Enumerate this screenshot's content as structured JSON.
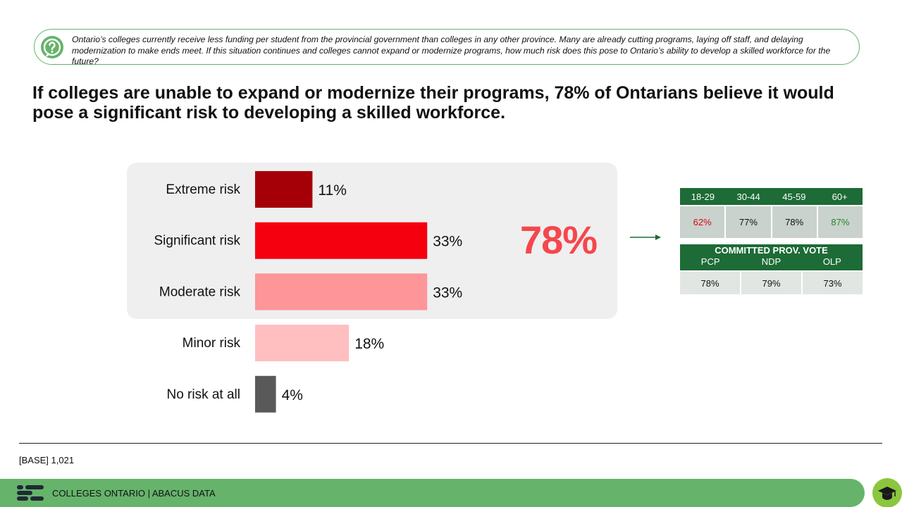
{
  "question": {
    "icon": "question-icon",
    "text": "Ontario’s colleges currently receive less funding per student from the provincial government than colleges in any other province. Many are already cutting programs, laying off staff, and delaying modernization to make ends meet. If this situation continues and colleges cannot expand or modernize programs, how much risk does this pose to Ontario’s ability to develop a skilled workforce for the future?"
  },
  "headline": "If colleges are unable to expand or modernize their programs, 78% of Ontarians believe it would pose a significant risk to developing a skilled workforce.",
  "chart_data": {
    "type": "bar",
    "orientation": "horizontal",
    "title": "",
    "xlabel": "",
    "ylabel": "",
    "xlim": [
      0,
      100
    ],
    "grid": false,
    "categories": [
      "Extreme risk",
      "Significant risk",
      "Moderate risk",
      "Minor risk",
      "No risk at all"
    ],
    "values": [
      11,
      33,
      33,
      18,
      4
    ],
    "value_labels": [
      "11%",
      "33%",
      "33%",
      "18%",
      "4%"
    ],
    "colors": [
      "#a50008",
      "#f5000f",
      "#fe9598",
      "#ffbfc1",
      "#595959"
    ],
    "highlight": {
      "categories": [
        "Extreme risk",
        "Significant risk",
        "Moderate risk"
      ],
      "total_label": "78%",
      "total_value": 78,
      "color": "#f5474d"
    }
  },
  "demographics": {
    "age": {
      "headers": [
        "18-29",
        "30-44",
        "45-59",
        "60+"
      ],
      "values": [
        "62%",
        "77%",
        "78%",
        "87%"
      ],
      "value_colors": [
        "#e0001b",
        "#111111",
        "#111111",
        "#1e8a2e"
      ]
    },
    "vote": {
      "title": "COMMITTED PROV. VOTE",
      "headers": [
        "PCP",
        "NDP",
        "OLP"
      ],
      "values": [
        "78%",
        "79%",
        "73%"
      ]
    }
  },
  "footer": {
    "base": "[BASE] 1,021",
    "brand": "COLLEGES ONTARIO  |  ABACUS DATA",
    "logo": "abacus-logo-icon",
    "nav_icon": "graduation-cap-icon"
  }
}
